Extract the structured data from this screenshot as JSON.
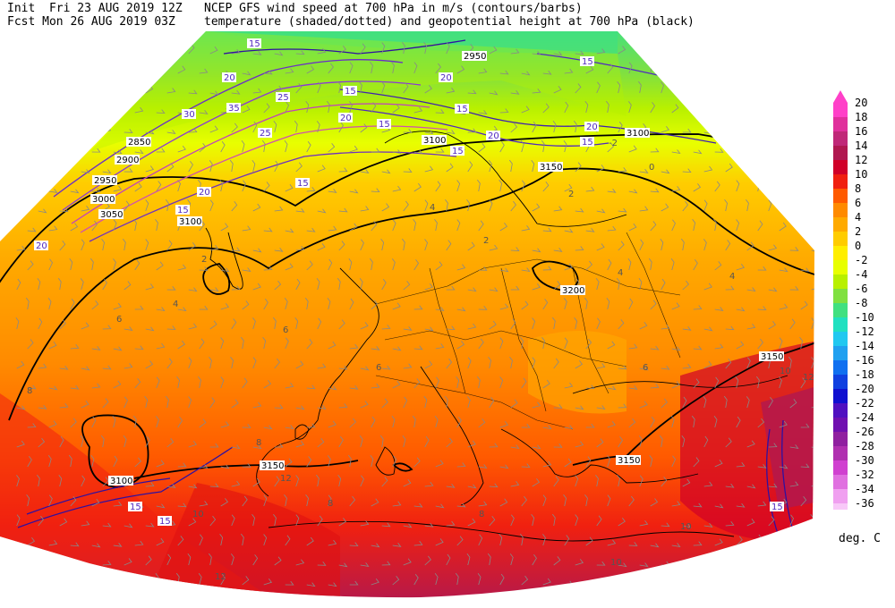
{
  "header": {
    "line1_left": "Init  Fri 23 AUG 2019 12Z",
    "line2_left": "Fcst Mon 26 AUG 2019 03Z",
    "line1_right": "NCEP GFS wind speed at 700 hPa in m/s (contours/barbs)",
    "line2_right": "temperature (shaded/dotted) and geopotential height at 700 hPa (black)"
  },
  "legend": {
    "units": "deg. C",
    "levels": [
      {
        "label": "20",
        "color": "#ff40c8"
      },
      {
        "label": "18",
        "color": "#e0309c"
      },
      {
        "label": "16",
        "color": "#c02878"
      },
      {
        "label": "14",
        "color": "#b01850"
      },
      {
        "label": "12",
        "color": "#d00028"
      },
      {
        "label": "10",
        "color": "#f02010"
      },
      {
        "label": "8",
        "color": "#ff5a00"
      },
      {
        "label": "6",
        "color": "#ff8a00"
      },
      {
        "label": "4",
        "color": "#ffaa00"
      },
      {
        "label": "2",
        "color": "#ffcc00"
      },
      {
        "label": "0",
        "color": "#ffee00"
      },
      {
        "label": "-2",
        "color": "#e8ff00"
      },
      {
        "label": "-4",
        "color": "#b8f000"
      },
      {
        "label": "-6",
        "color": "#80e040"
      },
      {
        "label": "-8",
        "color": "#40e080"
      },
      {
        "label": "-10",
        "color": "#20e0c0"
      },
      {
        "label": "-12",
        "color": "#20c8f0"
      },
      {
        "label": "-14",
        "color": "#20a0f0"
      },
      {
        "label": "-16",
        "color": "#1070f0"
      },
      {
        "label": "-18",
        "color": "#1040e0"
      },
      {
        "label": "-20",
        "color": "#1010d0"
      },
      {
        "label": "-22",
        "color": "#5010c0"
      },
      {
        "label": "-24",
        "color": "#7010b0"
      },
      {
        "label": "-26",
        "color": "#9020a0"
      },
      {
        "label": "-28",
        "color": "#b030b0"
      },
      {
        "label": "-30",
        "color": "#d040d0"
      },
      {
        "label": "-32",
        "color": "#e070e0"
      },
      {
        "label": "-34",
        "color": "#f0a0f0"
      },
      {
        "label": "-36",
        "color": "#f8c8f8"
      }
    ]
  },
  "height_labels": [
    "2950",
    "3000",
    "3050",
    "3100",
    "3150",
    "3200",
    "2850",
    "2900"
  ],
  "wind_labels": [
    "15",
    "20",
    "25",
    "30",
    "35"
  ],
  "temp_labels": [
    "-4",
    "-2",
    "0",
    "2",
    "4",
    "6",
    "8",
    "10",
    "12"
  ]
}
